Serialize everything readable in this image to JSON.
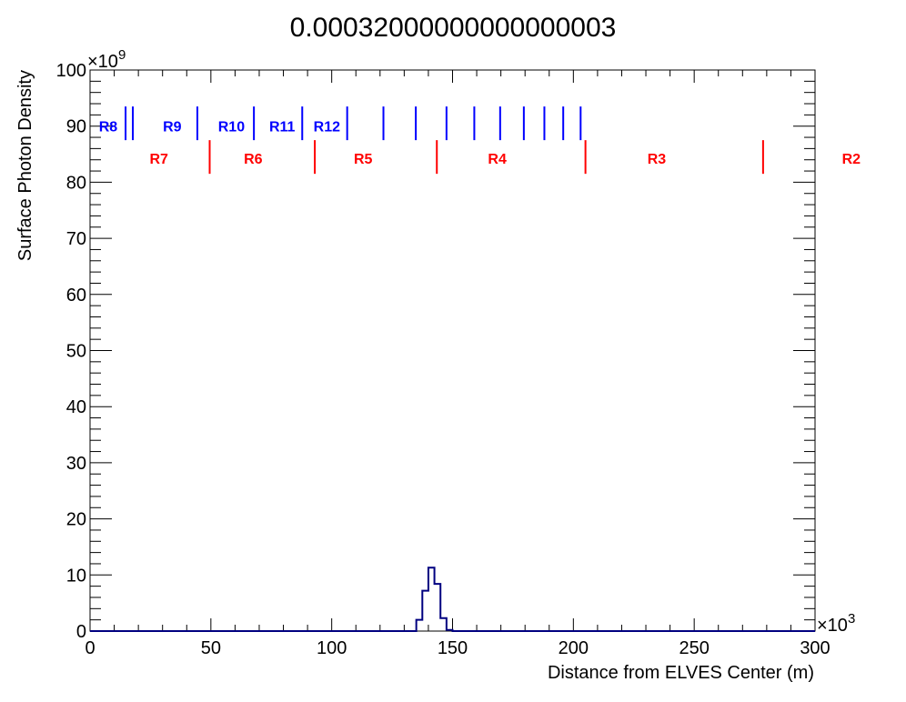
{
  "chart_data": {
    "type": "histogram",
    "title": "0.00032000000000000003",
    "xlabel": "Distance from ELVES Center (m)",
    "ylabel": "Surface Photon Density",
    "x_multiplier": "×10",
    "x_exponent": "3",
    "y_multiplier": "×10",
    "y_exponent": "9",
    "xlim": [
      0,
      300
    ],
    "ylim": [
      0,
      100
    ],
    "x_ticks": [
      0,
      50,
      100,
      150,
      200,
      250,
      300
    ],
    "x_tick_labels": [
      "0",
      "50",
      "100",
      "150",
      "200",
      "250",
      "300"
    ],
    "y_ticks": [
      0,
      10,
      20,
      30,
      40,
      50,
      60,
      70,
      80,
      90,
      100
    ],
    "y_tick_labels": [
      "0",
      "10",
      "20",
      "30",
      "40",
      "50",
      "60",
      "70",
      "80",
      "90",
      "100"
    ],
    "histogram": {
      "bin_edges": [
        0,
        135,
        137.5,
        140,
        142.5,
        145,
        147.5,
        150,
        300
      ],
      "values": [
        0,
        2,
        7.2,
        11.3,
        8.4,
        2.3,
        0.2,
        0
      ],
      "color": "#000080"
    },
    "blue_markers": {
      "color": "#0000ff",
      "y_range": [
        87.5,
        93.5
      ],
      "x": [
        14.7,
        17.7,
        44.4,
        67.8,
        87.8,
        106.4,
        121.4,
        134.8,
        147.5,
        159.0,
        169.7,
        179.5,
        188.0,
        195.8,
        203.0
      ],
      "labels": [
        {
          "text": "R8",
          "x": 7.5
        },
        {
          "text": "R9",
          "x": 34.0
        },
        {
          "text": "R10",
          "x": 58.5
        },
        {
          "text": "R11",
          "x": 79.5
        },
        {
          "text": "R12",
          "x": 98.0
        }
      ],
      "label_y": 90
    },
    "red_markers": {
      "color": "#ff0000",
      "y_range": [
        81.5,
        87.5
      ],
      "x": [
        49.5,
        93.0,
        143.5,
        205.0,
        278.5
      ],
      "labels": [
        {
          "text": "R7",
          "x": 28.5
        },
        {
          "text": "R6",
          "x": 67.5
        },
        {
          "text": "R5",
          "x": 113.0
        },
        {
          "text": "R4",
          "x": 168.5
        },
        {
          "text": "R3",
          "x": 234.5
        },
        {
          "text": "R2",
          "x": 315.0
        }
      ],
      "label_y": 84.3
    }
  }
}
